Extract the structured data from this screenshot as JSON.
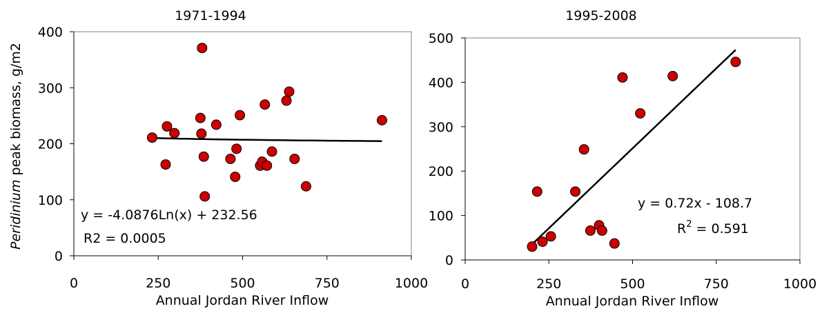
{
  "ylabel_italic": "Peridinium",
  "ylabel_rest": " peak biomass, g/m2",
  "chart_data": [
    {
      "type": "scatter",
      "title": "1971-1994",
      "xlabel": "Annual Jordan River Inflow",
      "ylabel": "Peridinium peak biomass, g/m2",
      "xlim": [
        0,
        1000
      ],
      "ylim": [
        0,
        400
      ],
      "xticks": [
        0,
        250,
        500,
        750,
        1000
      ],
      "yticks": [
        0,
        100,
        200,
        300,
        400
      ],
      "grid": false,
      "marker_color": "#cc0000",
      "points": [
        {
          "x": 232,
          "y": 211
        },
        {
          "x": 272,
          "y": 163
        },
        {
          "x": 276,
          "y": 231
        },
        {
          "x": 298,
          "y": 219
        },
        {
          "x": 375,
          "y": 246
        },
        {
          "x": 378,
          "y": 218
        },
        {
          "x": 380,
          "y": 371
        },
        {
          "x": 385,
          "y": 177
        },
        {
          "x": 388,
          "y": 106
        },
        {
          "x": 422,
          "y": 234
        },
        {
          "x": 464,
          "y": 173
        },
        {
          "x": 478,
          "y": 141
        },
        {
          "x": 482,
          "y": 191
        },
        {
          "x": 492,
          "y": 251
        },
        {
          "x": 552,
          "y": 161
        },
        {
          "x": 558,
          "y": 168
        },
        {
          "x": 566,
          "y": 270
        },
        {
          "x": 572,
          "y": 161
        },
        {
          "x": 587,
          "y": 186
        },
        {
          "x": 630,
          "y": 277
        },
        {
          "x": 638,
          "y": 293
        },
        {
          "x": 654,
          "y": 173
        },
        {
          "x": 688,
          "y": 124
        },
        {
          "x": 913,
          "y": 242
        }
      ],
      "trendline": {
        "type": "log",
        "a": -4.0876,
        "b": 232.56,
        "x_range": [
          232,
          913
        ]
      },
      "equation": "y = -4.0876Ln(x) + 232.56",
      "r2_text": "R2 = 0.0005"
    },
    {
      "type": "scatter",
      "title": "1995-2008",
      "xlabel": "Annual Jordan River Inflow",
      "ylabel": "",
      "xlim": [
        0,
        1000
      ],
      "ylim": [
        0,
        500
      ],
      "xticks": [
        0,
        250,
        500,
        750,
        1000
      ],
      "yticks": [
        0,
        100,
        200,
        300,
        400,
        500
      ],
      "grid": false,
      "marker_color": "#cc0000",
      "points": [
        {
          "x": 200,
          "y": 30
        },
        {
          "x": 215,
          "y": 154
        },
        {
          "x": 231,
          "y": 41
        },
        {
          "x": 256,
          "y": 53
        },
        {
          "x": 329,
          "y": 154
        },
        {
          "x": 355,
          "y": 249
        },
        {
          "x": 374,
          "y": 66
        },
        {
          "x": 400,
          "y": 78
        },
        {
          "x": 409,
          "y": 66
        },
        {
          "x": 446,
          "y": 37
        },
        {
          "x": 470,
          "y": 411
        },
        {
          "x": 523,
          "y": 330
        },
        {
          "x": 620,
          "y": 414
        },
        {
          "x": 808,
          "y": 446
        }
      ],
      "trendline": {
        "type": "linear",
        "m": 0.72,
        "c": -108.7,
        "x_range": [
          200,
          808
        ]
      },
      "equation": "y = 0.72x - 108.7",
      "r2_prefix": "R",
      "r2_sup": "2",
      "r2_suffix": " = 0.591"
    }
  ]
}
